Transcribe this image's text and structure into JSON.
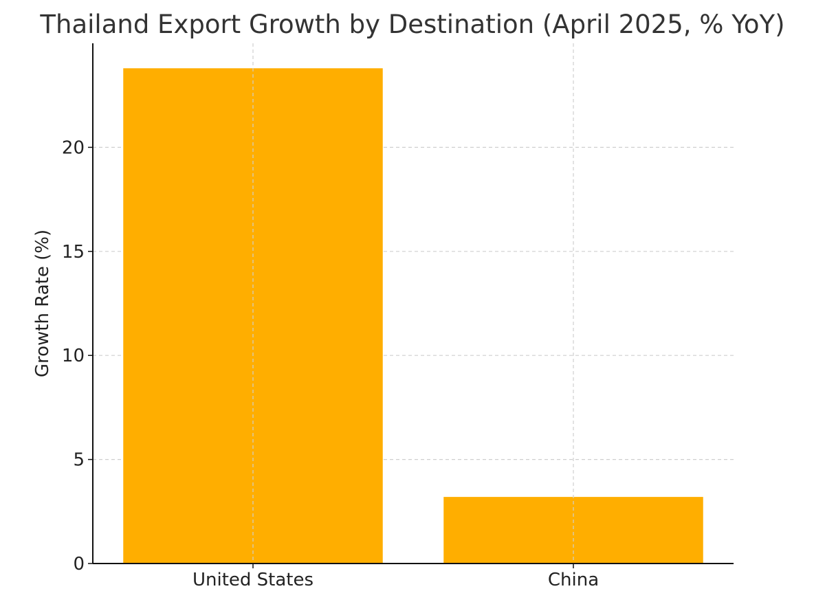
{
  "chart_data": {
    "type": "bar",
    "title": "Thailand Export Growth by Destination (April 2025, % YoY)",
    "xlabel": "",
    "ylabel": "Growth Rate (%)",
    "categories": [
      "United States",
      "China"
    ],
    "values": [
      23.8,
      3.2
    ],
    "ylim": [
      0,
      25
    ],
    "yticks": [
      0,
      5,
      10,
      15,
      20
    ],
    "grid": true,
    "bar_color": "#FFAE00"
  }
}
